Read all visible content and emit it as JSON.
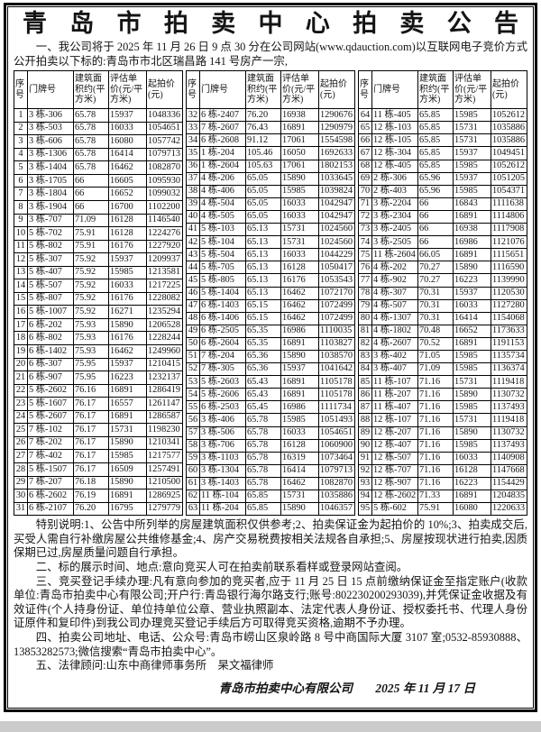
{
  "title": "青岛市拍卖中心拍卖公告",
  "intro": "一、我公司将于 2025 年 11 月 26 日 9 点 30 分在公司网站(www.qdauction.com)以互联网电子竞价方式公开拍卖以下标的:青岛市市北区瑞昌路 141 号房产一宗,",
  "table": {
    "headers": [
      "序号",
      "门牌号",
      "建筑面积约(平方米)",
      "评估单价(元/平方米)",
      "起拍价(元)"
    ],
    "groups": [
      [
        [
          "1",
          "3 栋-306",
          "65.78",
          "15937",
          "1048336"
        ],
        [
          "2",
          "3 栋-503",
          "65.78",
          "16033",
          "1054651"
        ],
        [
          "3",
          "3 栋-606",
          "65.78",
          "16080",
          "1057742"
        ],
        [
          "4",
          "3 栋-1306",
          "65.78",
          "16414",
          "1079713"
        ],
        [
          "5",
          "3 栋-1404",
          "65.78",
          "16462",
          "1082870"
        ],
        [
          "6",
          "3 栋-1705",
          "66",
          "16605",
          "1095930"
        ],
        [
          "7",
          "3 栋-1804",
          "66",
          "16652",
          "1099032"
        ],
        [
          "8",
          "3 栋-1904",
          "66",
          "16700",
          "1102200"
        ],
        [
          "9",
          "3 栋-707",
          "71.09",
          "16128",
          "1146540"
        ],
        [
          "10",
          "5 栋-702",
          "75.91",
          "16128",
          "1224276"
        ],
        [
          "11",
          "5 栋-802",
          "75.91",
          "16176",
          "1227920"
        ],
        [
          "12",
          "5 栋-307",
          "75.92",
          "15937",
          "1209937"
        ],
        [
          "13",
          "5 栋-407",
          "75.92",
          "15985",
          "1213581"
        ],
        [
          "14",
          "5 栋-507",
          "75.92",
          "16033",
          "1217225"
        ],
        [
          "15",
          "5 栋-807",
          "75.92",
          "16176",
          "1228082"
        ],
        [
          "16",
          "5 栋-1007",
          "75.92",
          "16271",
          "1235294"
        ],
        [
          "17",
          "6 栋-202",
          "75.93",
          "15890",
          "1206528"
        ],
        [
          "18",
          "6 栋-802",
          "75.93",
          "16176",
          "1228244"
        ],
        [
          "19",
          "6 栋-1402",
          "75.93",
          "16462",
          "1249960"
        ],
        [
          "20",
          "6 栋-307",
          "75.95",
          "15937",
          "1210415"
        ],
        [
          "21",
          "6 栋-907",
          "75.95",
          "16223",
          "1232137"
        ],
        [
          "22",
          "5 栋-2602",
          "76.16",
          "16891",
          "1286419"
        ],
        [
          "23",
          "5 栋-1607",
          "76.17",
          "16557",
          "1261147"
        ],
        [
          "24",
          "5 栋-2607",
          "76.17",
          "16891",
          "1286587"
        ],
        [
          "25",
          "7 栋-102",
          "76.17",
          "15731",
          "1198230"
        ],
        [
          "26",
          "7 栋-202",
          "76.17",
          "15890",
          "1210341"
        ],
        [
          "27",
          "7 栋-402",
          "76.17",
          "15985",
          "1217577"
        ],
        [
          "28",
          "5 栋-1507",
          "76.17",
          "16509",
          "1257491"
        ],
        [
          "29",
          "7 栋-207",
          "76.18",
          "15890",
          "1210500"
        ],
        [
          "30",
          "6 栋-2602",
          "76.19",
          "16891",
          "1286925"
        ],
        [
          "31",
          "6 栋-2107",
          "76.20",
          "16795",
          "1279779"
        ]
      ],
      [
        [
          "32",
          "6 栋-2407",
          "76.20",
          "16938",
          "1290676"
        ],
        [
          "33",
          "7 栋-2607",
          "76.43",
          "16891",
          "1290979"
        ],
        [
          "34",
          "6 栋-2608",
          "91.12",
          "17061",
          "1554598"
        ],
        [
          "35",
          "1 栋-204",
          "105.46",
          "16050",
          "1692633"
        ],
        [
          "36",
          "1 栋-2604",
          "105.63",
          "17061",
          "1802153"
        ],
        [
          "37",
          "4 栋-206",
          "65.05",
          "15890",
          "1033645"
        ],
        [
          "38",
          "4 栋-406",
          "65.05",
          "15985",
          "1039824"
        ],
        [
          "39",
          "4 栋-504",
          "65.05",
          "16033",
          "1042947"
        ],
        [
          "40",
          "4 栋-505",
          "65.05",
          "16033",
          "1042947"
        ],
        [
          "41",
          "5 栋-103",
          "65.13",
          "15731",
          "1024560"
        ],
        [
          "42",
          "5 栋-104",
          "65.13",
          "15731",
          "1024560"
        ],
        [
          "43",
          "5 栋-504",
          "65.13",
          "16033",
          "1044229"
        ],
        [
          "44",
          "5 栋-705",
          "65.13",
          "16128",
          "1050417"
        ],
        [
          "45",
          "5 栋-805",
          "65.13",
          "16176",
          "1053543"
        ],
        [
          "46",
          "5 栋-1404",
          "65.13",
          "16462",
          "1072170"
        ],
        [
          "47",
          "6 栋-1403",
          "65.15",
          "16462",
          "1072499"
        ],
        [
          "48",
          "6 栋-1406",
          "65.15",
          "16462",
          "1072499"
        ],
        [
          "49",
          "6 栋-2505",
          "65.35",
          "16986",
          "1110035"
        ],
        [
          "50",
          "6 栋-2604",
          "65.35",
          "16891",
          "1103827"
        ],
        [
          "51",
          "7 栋-204",
          "65.36",
          "15890",
          "1038570"
        ],
        [
          "52",
          "7 栋-305",
          "65.36",
          "15937",
          "1041642"
        ],
        [
          "53",
          "5 栋-2603",
          "65.43",
          "16891",
          "1105178"
        ],
        [
          "54",
          "5 栋-2606",
          "65.43",
          "16891",
          "1105178"
        ],
        [
          "55",
          "6 栋-2503",
          "65.45",
          "16986",
          "1111734"
        ],
        [
          "56",
          "3 栋-406",
          "65.78",
          "15985",
          "1051493"
        ],
        [
          "57",
          "3 栋-506",
          "65.78",
          "16033",
          "1054651"
        ],
        [
          "58",
          "3 栋-706",
          "65.78",
          "16128",
          "1060900"
        ],
        [
          "59",
          "3 栋-1103",
          "65.78",
          "16319",
          "1073464"
        ],
        [
          "60",
          "3 栋-1304",
          "65.78",
          "16414",
          "1079713"
        ],
        [
          "61",
          "3 栋-1403",
          "65.78",
          "16462",
          "1082870"
        ],
        [
          "62",
          "11 栋-104",
          "65.85",
          "15731",
          "1035886"
        ],
        [
          "63",
          "11 栋-204",
          "65.85",
          "15890",
          "1046357"
        ]
      ],
      [
        [
          "64",
          "11 栋-405",
          "65.85",
          "15985",
          "1052612"
        ],
        [
          "65",
          "12 栋-103",
          "65.85",
          "15731",
          "1035886"
        ],
        [
          "66",
          "12 栋-105",
          "65.85",
          "15731",
          "1035886"
        ],
        [
          "67",
          "12 栋-304",
          "65.85",
          "15937",
          "1049451"
        ],
        [
          "68",
          "12 栋-405",
          "65.85",
          "15985",
          "1052612"
        ],
        [
          "69",
          "2 栋-306",
          "65.96",
          "15937",
          "1051205"
        ],
        [
          "70",
          "2 栋-403",
          "65.96",
          "15985",
          "1054371"
        ],
        [
          "71",
          "3 栋-2204",
          "66",
          "16843",
          "1111638"
        ],
        [
          "72",
          "3 栋-2304",
          "66",
          "16891",
          "1114806"
        ],
        [
          "73",
          "3 栋-2405",
          "66",
          "16938",
          "1117908"
        ],
        [
          "74",
          "3 栋-2505",
          "66",
          "16986",
          "1121076"
        ],
        [
          "75",
          "11 栋-2604",
          "66.05",
          "16891",
          "1115651"
        ],
        [
          "76",
          "4 栋-202",
          "70.27",
          "15890",
          "1116590"
        ],
        [
          "77",
          "4 栋-902",
          "70.27",
          "16223",
          "1139990"
        ],
        [
          "78",
          "4 栋-307",
          "70.31",
          "15937",
          "1120530"
        ],
        [
          "79",
          "4 栋-507",
          "70.31",
          "16033",
          "1127280"
        ],
        [
          "80",
          "4 栋-1307",
          "70.31",
          "16414",
          "1154068"
        ],
        [
          "81",
          "4 栋-1802",
          "70.48",
          "16652",
          "1173633"
        ],
        [
          "82",
          "4 栋-2607",
          "70.52",
          "16891",
          "1191153"
        ],
        [
          "83",
          "3 栋-402",
          "71.05",
          "15985",
          "1135734"
        ],
        [
          "84",
          "3 栋-407",
          "71.09",
          "15985",
          "1136374"
        ],
        [
          "85",
          "11 栋-107",
          "71.16",
          "15731",
          "1119418"
        ],
        [
          "86",
          "11 栋-207",
          "71.16",
          "15890",
          "1130732"
        ],
        [
          "87",
          "11 栋-407",
          "71.16",
          "15985",
          "1137493"
        ],
        [
          "88",
          "12 栋-107",
          "71.16",
          "15731",
          "1119418"
        ],
        [
          "89",
          "12 栋-207",
          "71.16",
          "15890",
          "1130732"
        ],
        [
          "90",
          "12 栋-407",
          "71.16",
          "15985",
          "1137493"
        ],
        [
          "91",
          "12 栋-507",
          "71.16",
          "16033",
          "1140908"
        ],
        [
          "92",
          "12 栋-707",
          "71.16",
          "16128",
          "1147668"
        ],
        [
          "93",
          "12 栋-907",
          "71.16",
          "16223",
          "1154429"
        ],
        [
          "94",
          "12 栋-2602",
          "71.33",
          "16891",
          "1204835"
        ],
        [
          "95",
          "5 栋-602",
          "75.91",
          "16080",
          "1220633"
        ]
      ]
    ]
  },
  "special_notes": "特别说明:1、公告中所列举的房屋建筑面积仅供参考;2、拍卖保证金为起拍价的 10%;3、拍卖成交后,买受人需自行补缴房屋公共维修基金;4、房产交易税费按相关法规各自承担;5、房屋按现状进行拍卖,因质保期已过,房屋质量问题自行承担。",
  "sections": {
    "display": "二、标的展示时间、地点:意向竞买人可在拍卖前联系看样或登录网站查阅。",
    "registration": "三、竞买登记手续办理:凡有意向参加的竞买者,应于 11 月 25 日 15 点前缴纳保证金至指定账户(收款单位:青岛市拍卖中心有限公司;开户行:青岛银行海尔路支行;账号:802230200293039),并凭保证金收据及有效证件(个人持身份证、单位持单位公章、营业执照副本、法定代表人身份证、授权委托书、代理人身份证原件和复印件)到我公司办理竞买登记手续后方可取得竞买资格,逾期不予办理。",
    "contact": "四、拍卖公司地址、电话、公众号:青岛市崂山区泉岭路 8 号中商国际大厦 3107 室;0532-85930888、13853282573;微信搜索“青岛市拍卖中心”。",
    "legal": "五、法律顾问:山东中商律师事务所　杲文福律师"
  },
  "footer": {
    "company": "青岛市拍卖中心有限公司",
    "date": "2025 年 11 月 17 日"
  },
  "colors": {
    "paper": "#ffffff",
    "ink": "#141414",
    "border": "#000000",
    "page_edge": "#cbcbcb"
  }
}
